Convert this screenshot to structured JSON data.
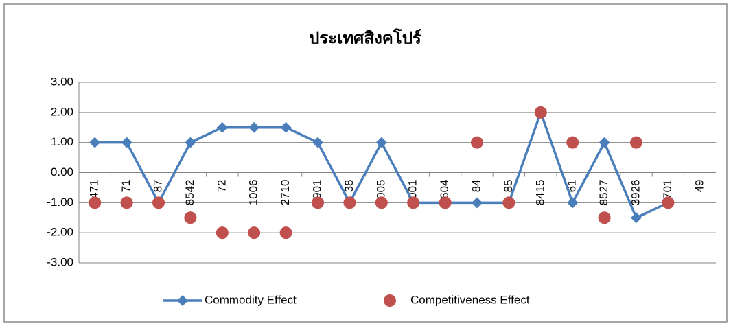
{
  "chart_data": {
    "type": "line",
    "title": "ประเทศสิงคโปร์",
    "categories": [
      "8471",
      "71",
      "87",
      "8542",
      "72",
      "1006",
      "2710",
      "3901",
      "38",
      "4005",
      "4001",
      "1604",
      "84",
      "85",
      "8415",
      "61",
      "8527",
      "3926",
      "1701",
      "49"
    ],
    "series": [
      {
        "name": "Commodity Effect",
        "color": "#4a7ebb",
        "values": [
          1,
          1,
          -1,
          1,
          1.5,
          1.5,
          1.5,
          1,
          -1,
          1,
          -1,
          -1,
          -1,
          -1,
          2,
          -1,
          1,
          -1.5,
          -1,
          null
        ]
      },
      {
        "name": "Competitiveness Effect",
        "color": "#c0504d",
        "values": [
          -1,
          -1,
          -1,
          -1.5,
          -2,
          -2,
          -2,
          -1,
          -1,
          -1,
          -1,
          -1,
          1,
          -1,
          2,
          1,
          -1.5,
          1,
          -1,
          null
        ]
      }
    ],
    "ylim": [
      -3,
      3
    ],
    "yticks": [
      {
        "value": -3,
        "label": "-3.00"
      },
      {
        "value": -2,
        "label": "-2.00"
      },
      {
        "value": -1,
        "label": "-1.00"
      },
      {
        "value": 0,
        "label": "0.00"
      },
      {
        "value": 1,
        "label": "1.00"
      },
      {
        "value": 2,
        "label": "2.00"
      },
      {
        "value": 3,
        "label": "3.00"
      }
    ],
    "grid": true,
    "legend": "bottom"
  }
}
